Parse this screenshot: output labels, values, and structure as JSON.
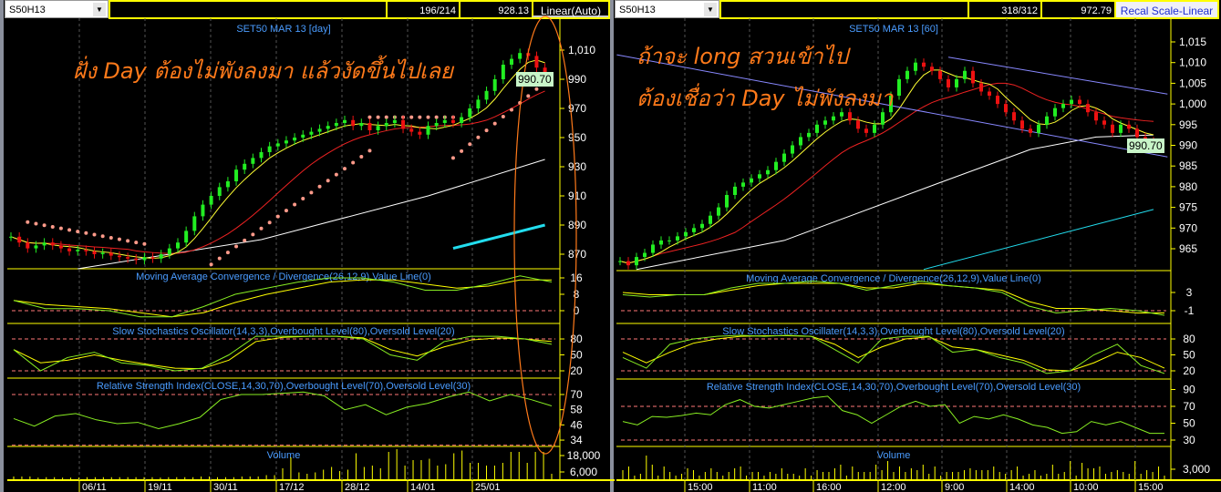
{
  "left": {
    "symbol": "S50H13",
    "counter": "196/214",
    "price_readout": "928.13",
    "scale_button": "Linear(Auto)",
    "title": "SET50 MAR 13  [day]",
    "last_price": "990.70",
    "annotation": "ฝั่ง Day ต้องไม่พังลงมา แล้วงัดขึ้นไปเลย",
    "price_ticks": [
      "1,010",
      "990",
      "970",
      "950",
      "930",
      "910",
      "890",
      "870"
    ],
    "date_labels": [
      "06/11",
      "19/11",
      "30/11",
      "17/12",
      "28/12",
      "14/01",
      "25/01"
    ],
    "closes": [
      882,
      878,
      874,
      876,
      878,
      876,
      874,
      872,
      873,
      872,
      870,
      871,
      869,
      868,
      867,
      866,
      868,
      867,
      870,
      874,
      878,
      886,
      896,
      904,
      910,
      916,
      920,
      928,
      932,
      936,
      940,
      944,
      946,
      948,
      950,
      952,
      954,
      956,
      958,
      960,
      962,
      958,
      960,
      955,
      958,
      960,
      962,
      956,
      954,
      952,
      958,
      960,
      962,
      960,
      964,
      970,
      976,
      982,
      990,
      1000,
      1004,
      1008,
      1006,
      998,
      990.7
    ],
    "sar_segments": [
      [
        2,
        16,
        892,
        877
      ],
      [
        24,
        43,
        863,
        941
      ],
      [
        43,
        53,
        964,
        964
      ],
      [
        53,
        64,
        936,
        988
      ]
    ],
    "long_ma": [
      [
        8,
        860
      ],
      [
        30,
        880
      ],
      [
        50,
        910
      ],
      [
        64,
        935
      ]
    ],
    "longer_ma": [
      [
        53,
        874
      ],
      [
        64,
        890
      ]
    ],
    "macd": {
      "title": "Moving Average Convergence / Divergence(26,12,9),Value Line(0)",
      "ticks": [
        "16",
        "8",
        "0"
      ],
      "line": [
        5,
        1,
        1,
        0,
        -3,
        -3,
        2,
        8,
        11,
        14,
        16,
        16,
        14,
        10,
        10,
        13,
        17,
        14
      ],
      "signal": [
        5,
        3,
        2,
        1,
        -1,
        -3,
        -1,
        4,
        8,
        11,
        14,
        15,
        15,
        13,
        11,
        12,
        15,
        15
      ]
    },
    "stoch": {
      "title": "Slow Stochastics Oscillator(14,3,3),Overbought Level(80),Oversold Level(20)",
      "ticks": [
        "80",
        "50",
        "20"
      ],
      "k": [
        60,
        20,
        45,
        55,
        35,
        30,
        20,
        25,
        50,
        85,
        85,
        85,
        85,
        80,
        50,
        40,
        75,
        85,
        85,
        80,
        70
      ],
      "d": [
        60,
        35,
        40,
        50,
        40,
        32,
        25,
        24,
        40,
        75,
        83,
        85,
        85,
        82,
        60,
        48,
        65,
        78,
        82,
        80,
        75
      ]
    },
    "rsi": {
      "title": "Relative Strength Index(CLOSE,14,30,70),Overbought Level(70),Oversold Level(30)",
      "ticks": [
        "70",
        "58",
        "46",
        "34"
      ],
      "values": [
        51,
        45,
        53,
        55,
        50,
        47,
        48,
        43,
        47,
        52,
        66,
        70,
        70,
        71,
        72,
        69,
        58,
        62,
        54,
        60,
        63,
        68,
        72,
        65,
        70,
        66,
        61
      ]
    },
    "volume": {
      "title": "Volume",
      "ticks": [
        "18,000",
        "6,000"
      ],
      "values": [
        2000,
        2000,
        2000,
        1200,
        1500,
        1500,
        1200,
        1200,
        1200,
        1500,
        1500,
        1500,
        1500,
        1500,
        1500,
        1500,
        1500,
        1500,
        1200,
        1500,
        1500,
        1500,
        1500,
        2000,
        2000,
        1500,
        1500,
        1500,
        2000,
        2000,
        2000,
        3000,
        3000,
        8000,
        16000,
        5000,
        4000,
        5000,
        7000,
        9000,
        6000,
        7000,
        19000,
        9000,
        10000,
        8000,
        20000,
        22000,
        10000,
        14000,
        14000,
        15000,
        10000,
        11000,
        19000,
        21000,
        12000,
        12000,
        10000,
        10000,
        12000,
        20000,
        20000,
        12000,
        20000,
        20000,
        4000
      ]
    }
  },
  "right": {
    "symbol": "S50H13",
    "counter": "318/312",
    "price_readout": "972.79",
    "scale_button": "Recal Scale-Linear",
    "title": "SET50 MAR 13  [60]",
    "last_price": "990.70",
    "annotation_line1": "ถ้าจะ long สวนเข้าไป",
    "annotation_line2": "ต้องเชื่อว่า Day ไม่พังลงมา",
    "price_ticks": [
      "1,015",
      "1,010",
      "1,005",
      "1,000",
      "995",
      "990",
      "985",
      "980",
      "975",
      "970",
      "965"
    ],
    "time_labels": [
      "15:00",
      "11:00",
      "16:00",
      "12:00",
      "9:00",
      "14:00",
      "10:00",
      "15:00"
    ],
    "closes": [
      962,
      961,
      963,
      964,
      966,
      967,
      967,
      968,
      969,
      970,
      971,
      973,
      975,
      978,
      980,
      981,
      982,
      983,
      984,
      986,
      988,
      990,
      992,
      993,
      995,
      996,
      997,
      998,
      996,
      994,
      993,
      995,
      998,
      1002,
      1006,
      1008,
      1010,
      1009,
      1008,
      1006,
      1004,
      1006,
      1008,
      1005,
      1003,
      1002,
      1000,
      998,
      996,
      994,
      993,
      995,
      997,
      999,
      1000,
      1001,
      1000,
      998,
      996,
      995,
      993,
      995,
      994,
      992,
      991,
      990.7
    ],
    "long_ma": [
      [
        2,
        960
      ],
      [
        20,
        967
      ],
      [
        39,
        981
      ],
      [
        50,
        989
      ],
      [
        58,
        992
      ],
      [
        65,
        992.5
      ]
    ],
    "longer_ma": [
      [
        37,
        960
      ],
      [
        65,
        974.5
      ]
    ],
    "channel": [
      [
        [
          -0.4,
          1011.9
        ],
        [
          66.7,
          987.2
        ]
      ],
      [
        [
          40,
          1011.3
        ],
        [
          66.7,
          1002.4
        ]
      ]
    ],
    "macd": {
      "title": "Moving Average Convergence / Divergence(26,12,9),Value Line(0)",
      "ticks": [
        "3",
        "-1"
      ],
      "line": [
        2.5,
        2,
        2.5,
        2.5,
        4,
        5,
        5,
        5.5,
        5,
        3.5,
        4.5,
        5.5,
        4.5,
        4,
        3,
        0,
        -1.5,
        -1,
        -0.5,
        -1,
        -2
      ],
      "signal": [
        3,
        2.5,
        2.5,
        2.5,
        3.5,
        4.5,
        5,
        5,
        5,
        4,
        4,
        5,
        4.5,
        4,
        3.5,
        1,
        -0.5,
        -0.5,
        -1,
        -1.5,
        -1.5
      ]
    },
    "stoch": {
      "title": "Slow Stochastics Oscillater(14,3,3),Overbought Level(80),Oversold Level(20)",
      "ticks": [
        "80",
        "50",
        "20"
      ],
      "k": [
        45,
        25,
        70,
        80,
        85,
        87,
        85,
        87,
        85,
        60,
        35,
        80,
        85,
        85,
        55,
        60,
        45,
        35,
        15,
        20,
        50,
        70,
        30,
        15
      ],
      "d": [
        55,
        35,
        55,
        72,
        80,
        85,
        86,
        86,
        85,
        70,
        45,
        65,
        80,
        84,
        65,
        60,
        50,
        40,
        22,
        20,
        35,
        55,
        45,
        25
      ]
    },
    "rsi": {
      "title": "Relative Strength Index(CLOSE,14,30,70),Overbought Level(70),Oversold Level(30)",
      "ticks": [
        "90",
        "70",
        "50",
        "30"
      ],
      "values": [
        52,
        48,
        58,
        57,
        59,
        62,
        60,
        72,
        78,
        70,
        68,
        72,
        76,
        80,
        82,
        65,
        60,
        50,
        60,
        70,
        76,
        70,
        72,
        50,
        58,
        55,
        60,
        55,
        48,
        45,
        38,
        40,
        52,
        48,
        52,
        45,
        38,
        38
      ]
    },
    "volume": {
      "title": "Volume",
      "ticks": [
        "3,000"
      ],
      "values": [
        2500,
        3500,
        1000,
        1500,
        6500,
        4000,
        1000,
        3500,
        2000,
        1000,
        1500,
        3000,
        2500,
        1000,
        2000,
        3000,
        2000,
        1000,
        2000,
        3000,
        3500,
        1000,
        2000,
        2000,
        1000,
        2000,
        1500,
        3000,
        1500,
        1500,
        1000,
        3000,
        1000,
        2500,
        2000,
        2000,
        3000,
        4000,
        1000,
        3500,
        2000,
        2000,
        2000,
        4000,
        2500,
        5000,
        2000,
        3500,
        2000,
        3000,
        2500,
        4000,
        1500,
        3500,
        1000,
        2000,
        2000,
        2000,
        2500,
        3000,
        2500,
        2500,
        2500,
        3500,
        2000,
        1500,
        2500,
        3500,
        1000,
        1500,
        2500,
        1000,
        1500,
        4000,
        1500,
        2000,
        5000,
        1000,
        4500,
        3000,
        3000,
        3500,
        1500,
        2000,
        2500,
        2000,
        1500,
        5000,
        1500,
        2500,
        2000,
        3500,
        1000
      ]
    }
  },
  "colors": {
    "up": "#22ee22",
    "down": "#ee1111",
    "ma_fast": "#ffff33",
    "ma_mid": "#ee2222",
    "ma_slow": "#ffffff",
    "ma_longer": "#22ddee",
    "sar": "#ff9a8a",
    "signal": "#ffff00",
    "osc": "#88ee22",
    "level": "#ff7777",
    "grid": "#ffff00",
    "annotation": "#ff7a1a",
    "channel": "#8888ff",
    "label": "#4a9cff"
  }
}
